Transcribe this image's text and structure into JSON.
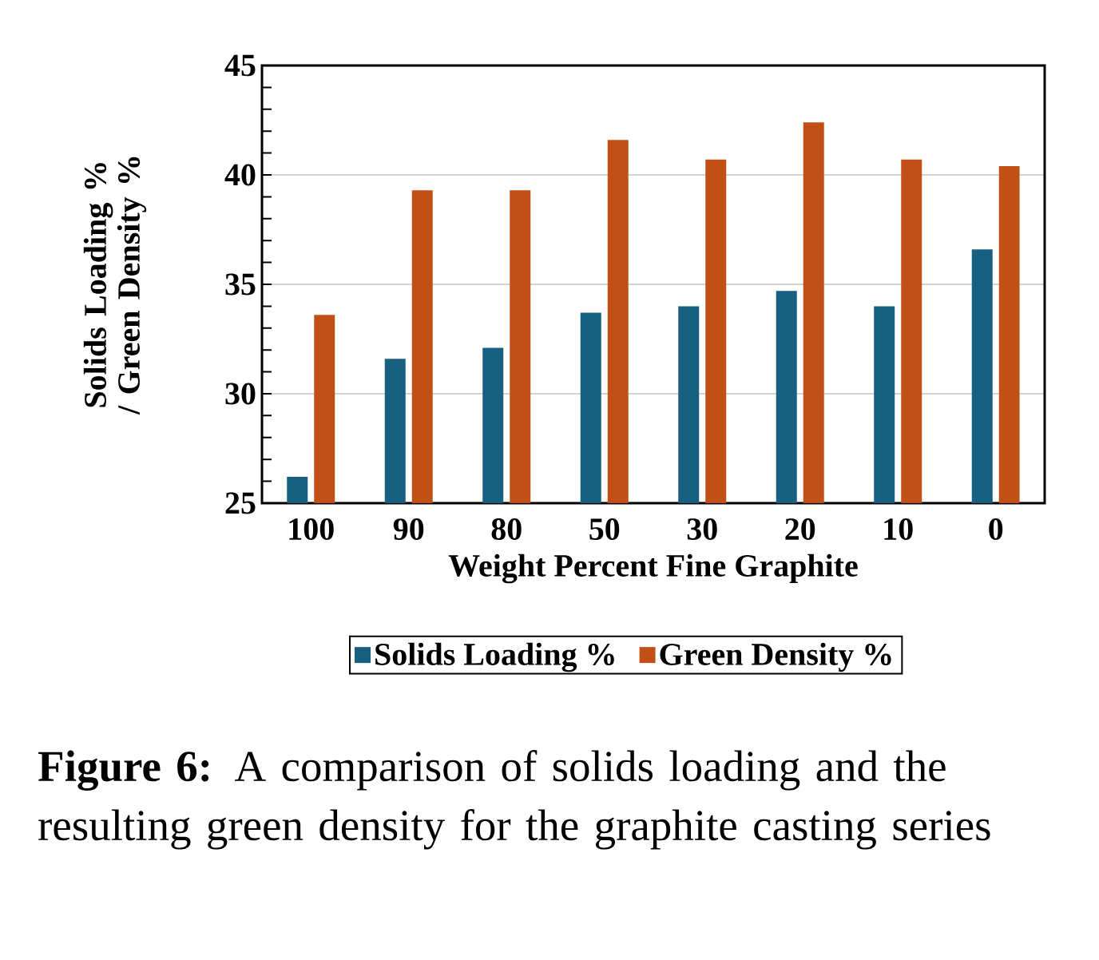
{
  "chart_data": {
    "type": "bar",
    "xlabel": "Weight Percent Fine Graphite",
    "ylabel": "Solids Loading % / Green Density %",
    "categories": [
      "100",
      "90",
      "80",
      "50",
      "30",
      "20",
      "10",
      "0"
    ],
    "series": [
      {
        "name": "Solids Loading %",
        "color": "#17607f",
        "values": [
          26.2,
          31.6,
          32.1,
          33.7,
          34.0,
          34.7,
          34.0,
          36.6
        ]
      },
      {
        "name": "Green Density %",
        "color": "#c05016",
        "values": [
          33.6,
          39.3,
          39.3,
          41.6,
          40.7,
          42.4,
          40.7,
          40.4
        ]
      }
    ],
    "ylim": [
      25,
      45
    ],
    "yticks": [
      25,
      30,
      35,
      40,
      45
    ],
    "grid": "y",
    "legend": "bottom",
    "annotations": [
      "**Figure 6:** A comparison of solids loading and the resulting green density for the graphite casting series"
    ]
  }
}
